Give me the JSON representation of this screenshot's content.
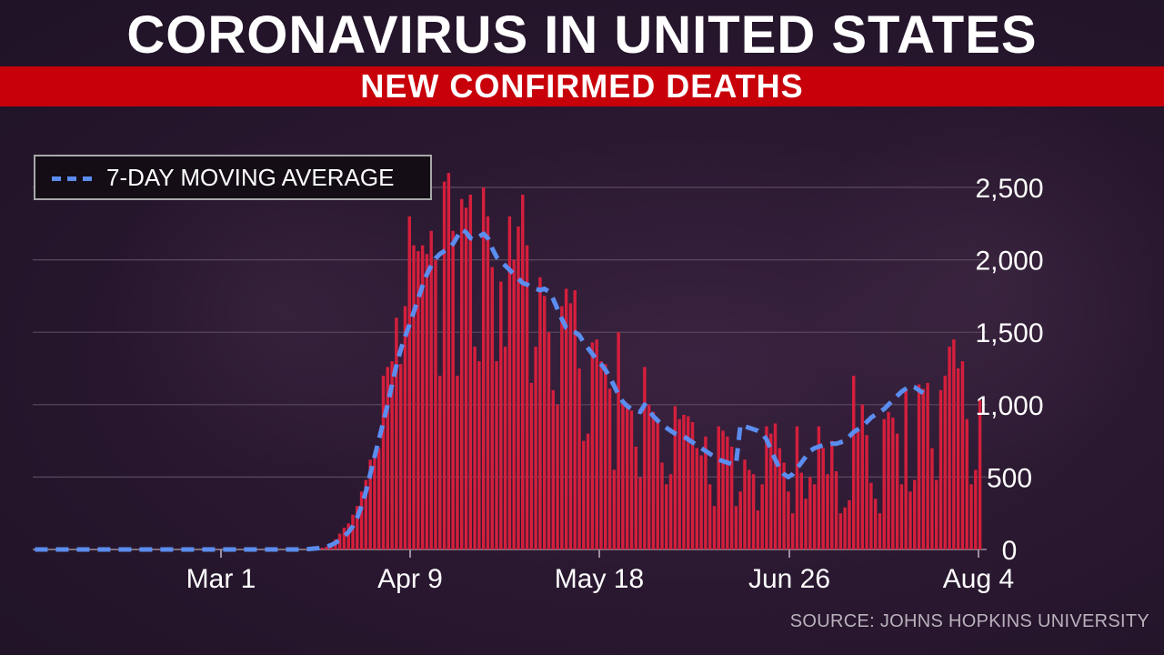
{
  "header": {
    "title": "CORONAVIRUS IN UNITED STATES",
    "subtitle": "NEW CONFIRMED DEATHS"
  },
  "legend": {
    "label": "7-DAY MOVING AVERAGE"
  },
  "source": "SOURCE: JOHNS HOPKINS UNIVERSITY",
  "colors": {
    "bar": "#d41f3c",
    "average": "#5b8def",
    "banner": "#c8000a"
  },
  "chart_data": {
    "type": "bar",
    "title": "NEW CONFIRMED DEATHS",
    "x_ticks": [
      "Mar 1",
      "Apr 9",
      "May 18",
      "Jun 26",
      "Aug 4"
    ],
    "y_ticks": [
      "0",
      "500",
      "1,000",
      "1,500",
      "2,000",
      "2,500"
    ],
    "ylim": [
      0,
      2500
    ],
    "grid": true,
    "legend_position": "top-left",
    "series": [
      {
        "type": "bar",
        "values": [
          0,
          0,
          0,
          0,
          0,
          0,
          0,
          0,
          0,
          0,
          0,
          0,
          0,
          0,
          0,
          0,
          0,
          0,
          0,
          0,
          0,
          0,
          0,
          0,
          0,
          0,
          0,
          0,
          0,
          0,
          0,
          0,
          0,
          0,
          0,
          0,
          0,
          0,
          0,
          0,
          0,
          0,
          0,
          0,
          0,
          0,
          0,
          0,
          0,
          0,
          0,
          0,
          0,
          0,
          0,
          0,
          0,
          0,
          0,
          0,
          0,
          0,
          1,
          2,
          5,
          9,
          12,
          20,
          40,
          70,
          110,
          150,
          180,
          240,
          300,
          400,
          480,
          620,
          640,
          700,
          1200,
          1260,
          1300,
          1600,
          1280,
          1680,
          2300,
          2100,
          2060,
          2100,
          2040,
          2200,
          2000,
          1200,
          2540,
          2600,
          2200,
          1200,
          2420,
          2360,
          2450,
          1400,
          1300,
          2500,
          2300,
          1950,
          1300,
          1850,
          1400,
          2300,
          2000,
          2230,
          2450,
          2100,
          1150,
          1400,
          1880,
          1750,
          1500,
          1100,
          1000,
          1680,
          1800,
          1700,
          1790,
          1250,
          750,
          800,
          1430,
          1450,
          1300,
          1280,
          1110,
          550,
          1500,
          1010,
          1010,
          960,
          710,
          500,
          1260,
          1000,
          950,
          900,
          600,
          450,
          520,
          990,
          900,
          930,
          920,
          880,
          700,
          650,
          780,
          450,
          300,
          850,
          820,
          780,
          710,
          300,
          400,
          620,
          550,
          520,
          270,
          450,
          850,
          800,
          870,
          700,
          600,
          400,
          250,
          850,
          530,
          350,
          500,
          450,
          850,
          700,
          520,
          750,
          540,
          250,
          290,
          340,
          1200,
          830,
          1000,
          790,
          460,
          350,
          250,
          900,
          950,
          910,
          800,
          450,
          1100,
          400,
          480,
          1140,
          1110,
          1150,
          700,
          480,
          1100,
          1200,
          1400,
          1450,
          1250,
          1300,
          900,
          450,
          550,
          1030
        ]
      },
      {
        "type": "line",
        "name": "7-DAY MOVING AVERAGE",
        "values": [
          0,
          0,
          0,
          0,
          0,
          0,
          0,
          0,
          0,
          0,
          0,
          0,
          0,
          0,
          0,
          0,
          0,
          0,
          0,
          0,
          0,
          0,
          0,
          0,
          0,
          0,
          0,
          0,
          0,
          0,
          0,
          0,
          0,
          0,
          0,
          0,
          0,
          0,
          0,
          0,
          0,
          0,
          0,
          0,
          0,
          0,
          0,
          0,
          0,
          0,
          0,
          0,
          0,
          0,
          0,
          0,
          0,
          0,
          0,
          0,
          0,
          0,
          1,
          3,
          6,
          9,
          14,
          20,
          30,
          45,
          65,
          90,
          120,
          160,
          220,
          300,
          400,
          520,
          640,
          760,
          880,
          1000,
          1140,
          1270,
          1380,
          1470,
          1550,
          1640,
          1730,
          1820,
          1900,
          1960,
          2010,
          2040,
          2060,
          2080,
          2110,
          2160,
          2210,
          2190,
          2150,
          2140,
          2160,
          2180,
          2150,
          2080,
          2020,
          1990,
          1960,
          1930,
          1900,
          1870,
          1840,
          1830,
          1810,
          1800,
          1790,
          1800,
          1780,
          1730,
          1660,
          1590,
          1530,
          1510,
          1500,
          1480,
          1430,
          1390,
          1350,
          1310,
          1280,
          1240,
          1190,
          1130,
          1070,
          1020,
          990,
          970,
          960,
          950,
          1000,
          960,
          920,
          890,
          860,
          840,
          820,
          800,
          790,
          780,
          760,
          740,
          720,
          700,
          680,
          660,
          640,
          620,
          610,
          600,
          590,
          590,
          860,
          850,
          840,
          830,
          820,
          800,
          760,
          690,
          620,
          560,
          520,
          500,
          520,
          560,
          600,
          640,
          680,
          700,
          710,
          720,
          720,
          730,
          730,
          740,
          750,
          780,
          810,
          830,
          850,
          880,
          910,
          930,
          950,
          970,
          1000,
          1030,
          1060,
          1090,
          1110,
          1130,
          1120,
          1100,
          1080
        ]
      }
    ]
  }
}
